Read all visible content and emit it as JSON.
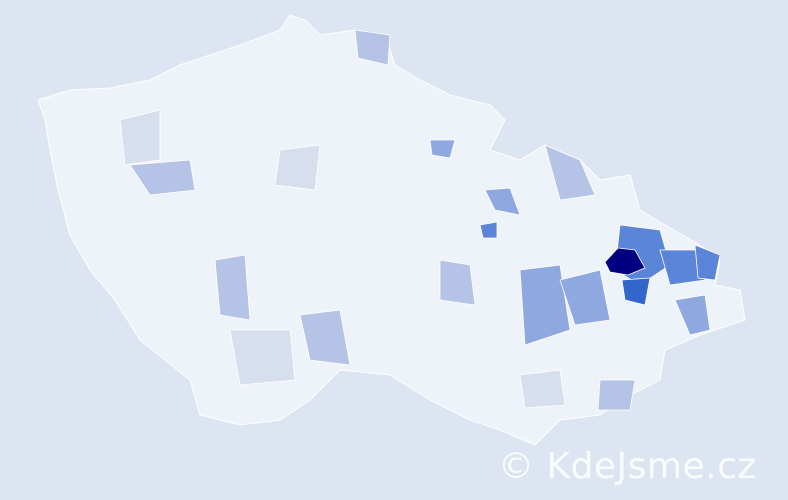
{
  "map": {
    "background_color": "#dce5f1",
    "base_region_color": "#eef2f9",
    "scale_colors": [
      "#eef2f9",
      "#d7deee",
      "#b4c3e6",
      "#8fa8e0",
      "#5b85d8",
      "#3366cc",
      "#000080"
    ],
    "max_region_color": "#000080"
  },
  "watermark": {
    "text": "© KdeJsme.cz"
  }
}
